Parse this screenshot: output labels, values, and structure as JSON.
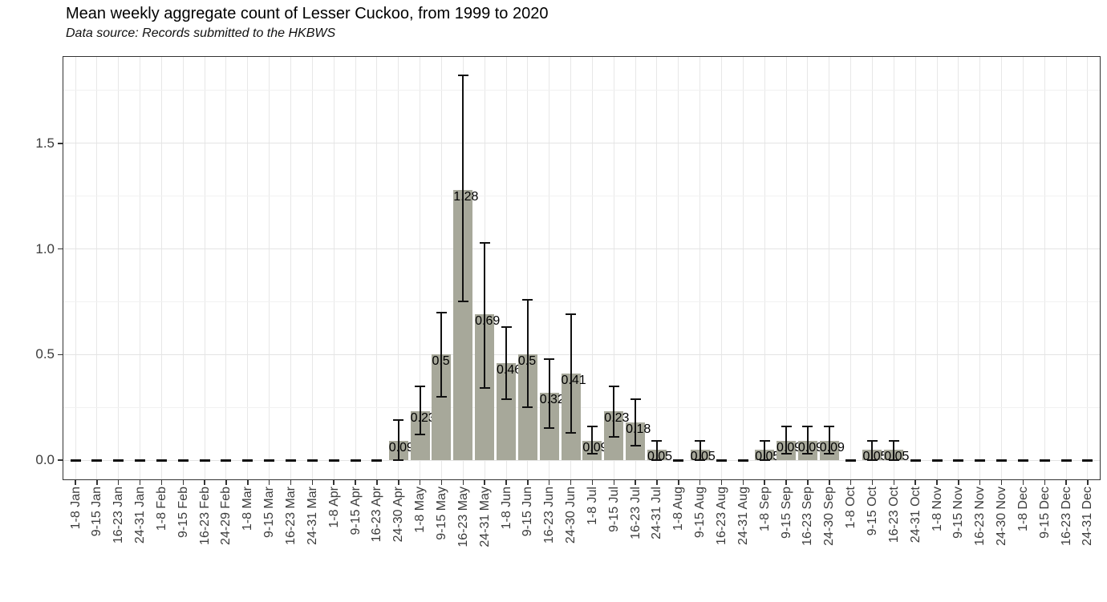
{
  "page": {
    "background": "#ffffff"
  },
  "chart_data": {
    "type": "bar",
    "title": "Mean weekly aggregate count of Lesser Cuckoo, from 1999 to 2020",
    "subtitle": "Data source: Records submitted to the HKBWS",
    "xlabel": "",
    "ylabel": "",
    "legend": "none",
    "grid": "on",
    "bar_color": "#a7a89a",
    "errorbar_color": "#111111",
    "zero_marker": "dash",
    "ylim": [
      -0.09,
      1.91
    ],
    "yticks": [
      {
        "value": 0,
        "label": "0.0"
      },
      {
        "value": 0.5,
        "label": "0.5"
      },
      {
        "value": 1.0,
        "label": "1.0"
      },
      {
        "value": 1.5,
        "label": "1.5"
      }
    ],
    "y_minor_gridlines": [
      0.25,
      0.75,
      1.25,
      1.75
    ],
    "categories": [
      "1-8 Jan",
      "9-15 Jan",
      "16-23 Jan",
      "24-31 Jan",
      "1-8 Feb",
      "9-15 Feb",
      "16-23 Feb",
      "24-29 Feb",
      "1-8 Mar",
      "9-15 Mar",
      "16-23 Mar",
      "24-31 Mar",
      "1-8 Apr",
      "9-15 Apr",
      "16-23 Apr",
      "24-30 Apr",
      "1-8 May",
      "9-15 May",
      "16-23 May",
      "24-31 May",
      "1-8 Jun",
      "9-15 Jun",
      "16-23 Jun",
      "24-30 Jun",
      "1-8 Jul",
      "9-15 Jul",
      "16-23 Jul",
      "24-31 Jul",
      "1-8 Aug",
      "9-15 Aug",
      "16-23 Aug",
      "24-31 Aug",
      "1-8 Sep",
      "9-15 Sep",
      "16-23 Sep",
      "24-30 Sep",
      "1-8 Oct",
      "9-15 Oct",
      "16-23 Oct",
      "24-31 Oct",
      "1-8 Nov",
      "9-15 Nov",
      "16-23 Nov",
      "24-30 Nov",
      "1-8 Dec",
      "9-15 Dec",
      "16-23 Dec",
      "24-31 Dec"
    ],
    "values": [
      0,
      0,
      0,
      0,
      0,
      0,
      0,
      0,
      0,
      0,
      0,
      0,
      0,
      0,
      0,
      0.09,
      0.23,
      0.5,
      1.28,
      0.69,
      0.46,
      0.5,
      0.32,
      0.41,
      0.09,
      0.23,
      0.18,
      0.05,
      0,
      0.05,
      0,
      0,
      0.05,
      0.09,
      0.09,
      0.09,
      0,
      0.05,
      0.05,
      0,
      0,
      0,
      0,
      0,
      0,
      0,
      0,
      0
    ],
    "error_low": [
      0,
      0,
      0,
      0,
      0,
      0,
      0,
      0,
      0,
      0,
      0,
      0,
      0,
      0,
      0,
      0,
      0.12,
      0.3,
      0.75,
      0.34,
      0.29,
      0.25,
      0.15,
      0.13,
      0.03,
      0.11,
      0.07,
      0,
      0,
      0,
      0,
      0,
      0,
      0.03,
      0.03,
      0.03,
      0,
      0,
      0,
      0,
      0,
      0,
      0,
      0,
      0,
      0,
      0,
      0
    ],
    "error_high": [
      0,
      0,
      0,
      0,
      0,
      0,
      0,
      0,
      0,
      0,
      0,
      0,
      0,
      0,
      0,
      0.19,
      0.35,
      0.7,
      1.82,
      1.03,
      0.63,
      0.76,
      0.48,
      0.69,
      0.16,
      0.35,
      0.29,
      0.09,
      0,
      0.09,
      0,
      0,
      0.09,
      0.16,
      0.16,
      0.16,
      0,
      0.09,
      0.09,
      0,
      0,
      0,
      0,
      0,
      0,
      0,
      0,
      0
    ]
  }
}
